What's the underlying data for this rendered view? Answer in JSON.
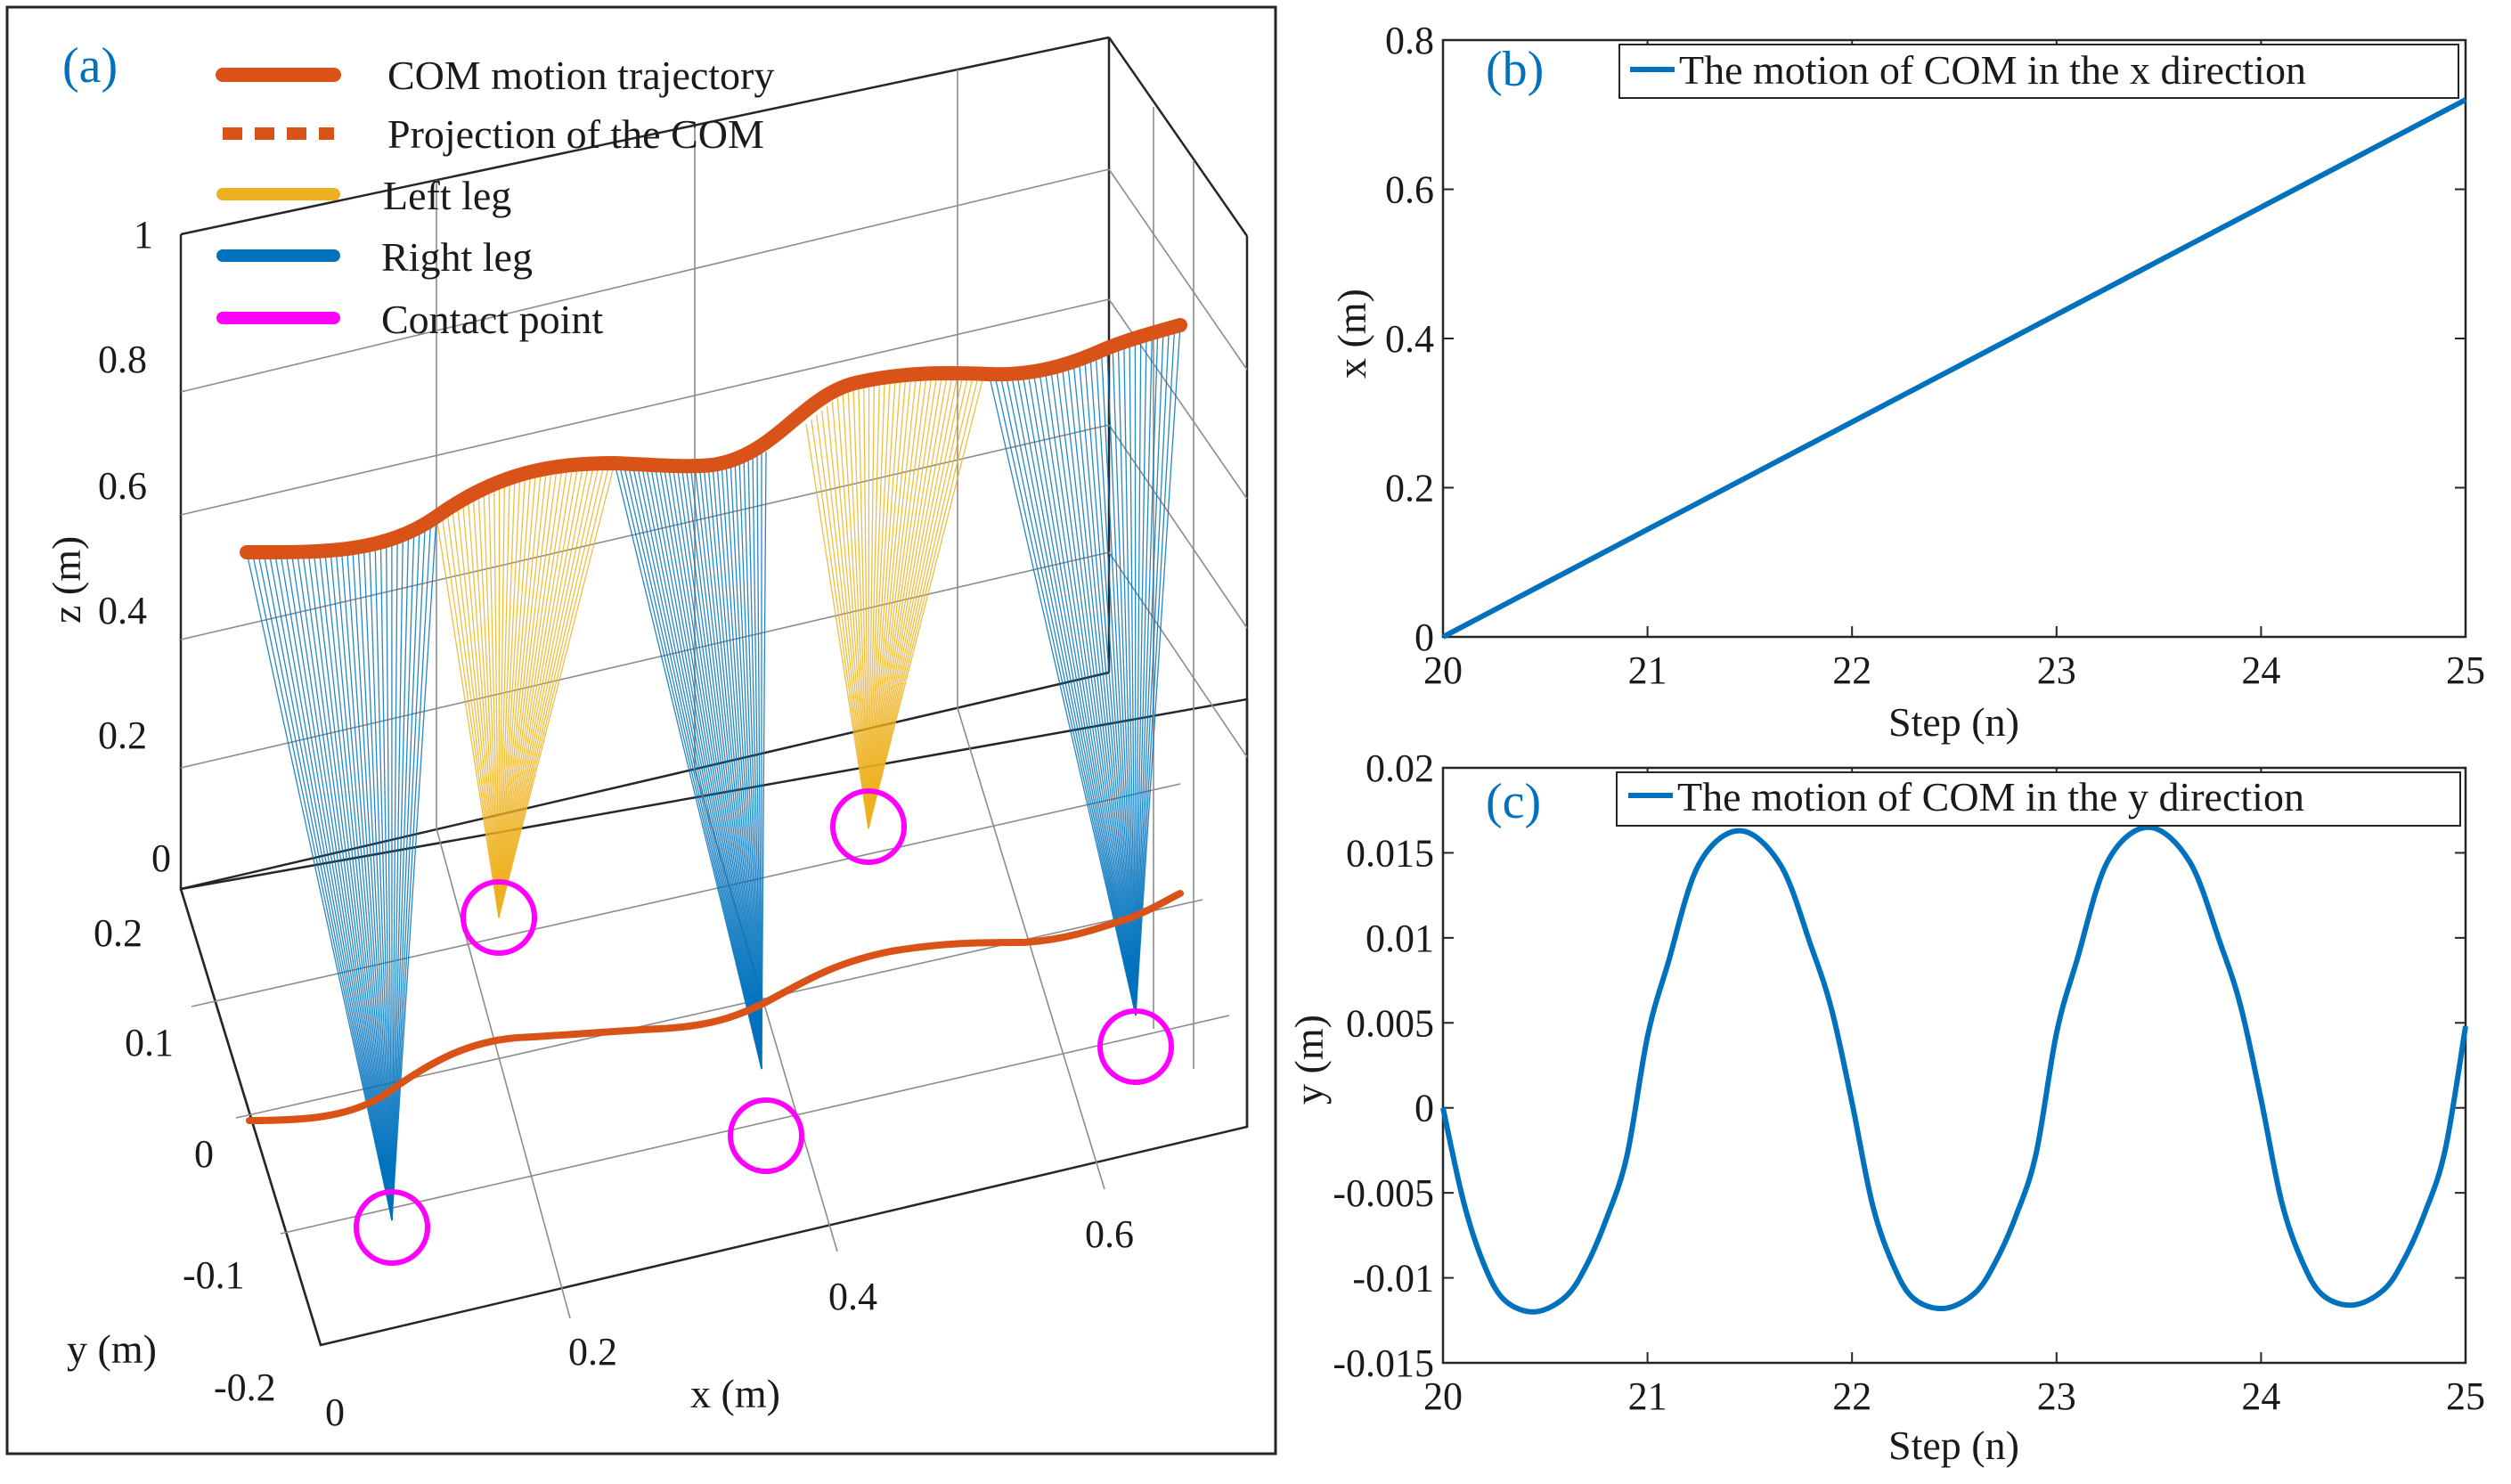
{
  "colors": {
    "com": "#d95319",
    "left_leg": "#edb120",
    "right_leg": "#0072bd",
    "contact": "#ff00ff",
    "panel_label": "#0072bd",
    "axis": "#262626",
    "grid": "#b0b0b0"
  },
  "chart_data": [
    {
      "id": "a",
      "type": "line",
      "projection": "3d",
      "panel_label": "(a)",
      "xlabel": "x (m)",
      "ylabel": "y (m)",
      "zlabel": "z (m)",
      "xlim": [
        0,
        0.7
      ],
      "ylim": [
        -0.2,
        0.2
      ],
      "zlim": [
        0,
        1
      ],
      "x_ticks": [
        "0",
        "0.2",
        "0.4",
        "0.6"
      ],
      "y_ticks": [
        "-0.2",
        "-0.1",
        "0",
        "0.1",
        "0.2"
      ],
      "z_ticks": [
        "0",
        "0.2",
        "0.4",
        "0.6",
        "0.8",
        "1"
      ],
      "legend": [
        {
          "label": "COM motion trajectory",
          "style": "thick-solid",
          "color": "#d95319"
        },
        {
          "label": "Projection of the COM",
          "style": "dotted",
          "color": "#d95319"
        },
        {
          "label": "Left leg",
          "style": "solid",
          "color": "#edb120"
        },
        {
          "label": "Right leg",
          "style": "solid",
          "color": "#0072bd"
        },
        {
          "label": "Contact point",
          "style": "circle",
          "color": "#ff00ff"
        }
      ],
      "com_height_m": [
        0.55,
        0.62,
        0.63,
        0.65,
        0.66,
        0.67
      ],
      "contact_points": [
        {
          "leg": "right",
          "x": 0.05,
          "y": -0.08
        },
        {
          "leg": "left",
          "x": 0.17,
          "y": 0.09
        },
        {
          "leg": "right",
          "x": 0.33,
          "y": -0.07
        },
        {
          "leg": "left",
          "x": 0.45,
          "y": 0.1
        },
        {
          "leg": "right",
          "x": 0.62,
          "y": -0.06
        }
      ]
    },
    {
      "id": "b",
      "type": "line",
      "panel_label": "(b)",
      "title": "",
      "xlabel": "Step (n)",
      "ylabel": "x (m)",
      "xlim": [
        20,
        25
      ],
      "ylim": [
        0,
        0.8
      ],
      "x_ticks": [
        "20",
        "21",
        "22",
        "23",
        "24",
        "25"
      ],
      "y_ticks": [
        "0",
        "0.2",
        "0.4",
        "0.6",
        "0.8"
      ],
      "series": [
        {
          "name": "The motion of COM in the x direction",
          "x": [
            20,
            20.5,
            21,
            21.5,
            22,
            22.5,
            23,
            23.5,
            24,
            24.5,
            25
          ],
          "values": [
            0,
            0.072,
            0.144,
            0.216,
            0.288,
            0.36,
            0.432,
            0.504,
            0.576,
            0.648,
            0.72
          ]
        }
      ]
    },
    {
      "id": "c",
      "type": "line",
      "panel_label": "(c)",
      "title": "",
      "xlabel": "Step (n)",
      "ylabel": "y (m)",
      "xlim": [
        20,
        25
      ],
      "ylim": [
        -0.015,
        0.02
      ],
      "x_ticks": [
        "20",
        "21",
        "22",
        "23",
        "24",
        "25"
      ],
      "y_ticks": [
        "-0.015",
        "-0.01",
        "-0.005",
        "0",
        "0.005",
        "0.01",
        "0.015",
        "0.02"
      ],
      "series": [
        {
          "name": "The motion of COM in the y direction",
          "x": [
            20,
            20.1,
            20.2,
            20.3,
            20.45,
            20.6,
            20.7,
            20.8,
            20.9,
            21,
            21.1,
            21.25,
            21.45,
            21.65,
            21.8,
            21.9,
            22,
            22.1,
            22.2,
            22.3,
            22.45,
            22.6,
            22.7,
            22.8,
            22.9,
            23,
            23.1,
            23.25,
            23.45,
            23.65,
            23.8,
            23.9,
            24,
            24.1,
            24.2,
            24.3,
            24.45,
            24.6,
            24.7,
            24.8,
            24.9,
            25
          ],
          "values": [
            0,
            -0.0055,
            -0.0092,
            -0.0113,
            -0.012,
            -0.0111,
            -0.0093,
            -0.0065,
            -0.0028,
            0.0042,
            0.0085,
            0.0143,
            0.0163,
            0.0143,
            0.0095,
            0.0058,
            0.0003,
            -0.0057,
            -0.0092,
            -0.0112,
            -0.0118,
            -0.0109,
            -0.0091,
            -0.0064,
            -0.0027,
            0.0044,
            0.0087,
            0.0145,
            0.0165,
            0.0145,
            0.0097,
            0.006,
            0.0005,
            -0.0055,
            -0.009,
            -0.011,
            -0.0116,
            -0.0107,
            -0.0089,
            -0.0062,
            -0.0025,
            0.0048
          ]
        }
      ]
    }
  ]
}
